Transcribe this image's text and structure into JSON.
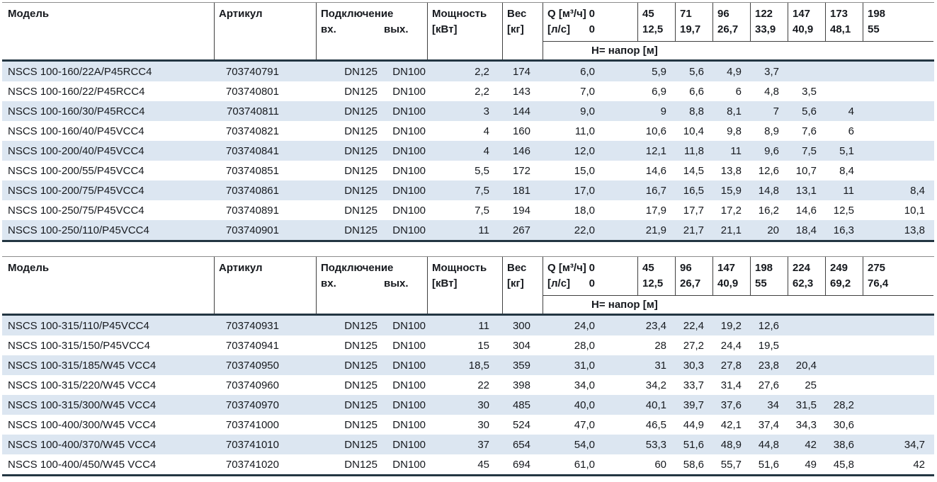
{
  "colors": {
    "stripe": "#dce6f1",
    "heavy_rule": "#233642",
    "light_rule": "#8c8c8c",
    "mid_rule": "#404040",
    "text": "#16191e"
  },
  "tables": [
    {
      "headers": {
        "model": "Модель",
        "artikul": "Артикул",
        "connection": "Подключение",
        "conn_in": "вх.",
        "conn_out": "вых.",
        "power_line1": "Мощность",
        "power_line2": "[кВт]",
        "weight_line1": "Вес",
        "weight_line2": "[кг]",
        "q_row1_label": "Q [м³/ч]",
        "q_row1_value": "0",
        "q_row2_label": "[л/с]",
        "q_row2_value": "0",
        "head_band": "Н= напор [м]",
        "flow_cols": [
          {
            "m3h": "45",
            "ls": "12,5"
          },
          {
            "m3h": "71",
            "ls": "19,7"
          },
          {
            "m3h": "96",
            "ls": "26,7"
          },
          {
            "m3h": "122",
            "ls": "33,9"
          },
          {
            "m3h": "147",
            "ls": "40,9"
          },
          {
            "m3h": "173",
            "ls": "48,1"
          },
          {
            "m3h": "198",
            "ls": "55"
          }
        ]
      },
      "rows": [
        {
          "model": "NSCS 100-160/22A/P45RCC4",
          "artikul": "703740791",
          "conn_in": "DN125",
          "conn_out": "DN100",
          "power": "2,2",
          "weight": "174",
          "h": [
            "6,0",
            "5,9",
            "5,6",
            "4,9",
            "3,7",
            "",
            "",
            ""
          ]
        },
        {
          "model": "NSCS 100-160/22/P45RCC4",
          "artikul": "703740801",
          "conn_in": "DN125",
          "conn_out": "DN100",
          "power": "2,2",
          "weight": "143",
          "h": [
            "7,0",
            "6,9",
            "6,6",
            "6",
            "4,8",
            "3,5",
            "",
            ""
          ]
        },
        {
          "model": "NSCS 100-160/30/P45RCC4",
          "artikul": "703740811",
          "conn_in": "DN125",
          "conn_out": "DN100",
          "power": "3",
          "weight": "144",
          "h": [
            "9,0",
            "9",
            "8,8",
            "8,1",
            "7",
            "5,6",
            "4",
            ""
          ]
        },
        {
          "model": "NSCS 100-160/40/P45VCC4",
          "artikul": "703740821",
          "conn_in": "DN125",
          "conn_out": "DN100",
          "power": "4",
          "weight": "160",
          "h": [
            "11,0",
            "10,6",
            "10,4",
            "9,8",
            "8,9",
            "7,6",
            "6",
            ""
          ]
        },
        {
          "model": "NSCS 100-200/40/P45VCC4",
          "artikul": "703740841",
          "conn_in": "DN125",
          "conn_out": "DN100",
          "power": "4",
          "weight": "146",
          "h": [
            "12,0",
            "12,1",
            "11,8",
            "11",
            "9,6",
            "7,5",
            "5,1",
            ""
          ]
        },
        {
          "model": "NSCS 100-200/55/P45VCC4",
          "artikul": "703740851",
          "conn_in": "DN125",
          "conn_out": "DN100",
          "power": "5,5",
          "weight": "172",
          "h": [
            "15,0",
            "14,6",
            "14,5",
            "13,8",
            "12,6",
            "10,7",
            "8,4",
            ""
          ]
        },
        {
          "model": "NSCS 100-200/75/P45VCC4",
          "artikul": "703740861",
          "conn_in": "DN125",
          "conn_out": "DN100",
          "power": "7,5",
          "weight": "181",
          "h": [
            "17,0",
            "16,7",
            "16,5",
            "15,9",
            "14,8",
            "13,1",
            "11",
            "8,4"
          ]
        },
        {
          "model": "NSCS 100-250/75/P45VCC4",
          "artikul": "703740891",
          "conn_in": "DN125",
          "conn_out": "DN100",
          "power": "7,5",
          "weight": "194",
          "h": [
            "18,0",
            "17,9",
            "17,7",
            "17,2",
            "16,2",
            "14,6",
            "12,5",
            "10,1"
          ]
        },
        {
          "model": "NSCS 100-250/110/P45VCC4",
          "artikul": "703740901",
          "conn_in": "DN125",
          "conn_out": "DN100",
          "power": "11",
          "weight": "267",
          "h": [
            "22,0",
            "21,9",
            "21,7",
            "21,1",
            "20",
            "18,4",
            "16,3",
            "13,8"
          ]
        }
      ]
    },
    {
      "headers": {
        "model": "Модель",
        "artikul": "Артикул",
        "connection": "Подключение",
        "conn_in": "вх.",
        "conn_out": "вых.",
        "power_line1": "Мощность",
        "power_line2": "[кВт]",
        "weight_line1": "Вес",
        "weight_line2": "[кг]",
        "q_row1_label": "Q [м³/ч]",
        "q_row1_value": "0",
        "q_row2_label": "[л/с]",
        "q_row2_value": "0",
        "head_band": "Н= напор [м]",
        "flow_cols": [
          {
            "m3h": "45",
            "ls": "12,5"
          },
          {
            "m3h": "96",
            "ls": "26,7"
          },
          {
            "m3h": "147",
            "ls": "40,9"
          },
          {
            "m3h": "198",
            "ls": "55"
          },
          {
            "m3h": "224",
            "ls": "62,3"
          },
          {
            "m3h": "249",
            "ls": "69,2"
          },
          {
            "m3h": "275",
            "ls": "76,4"
          }
        ]
      },
      "rows": [
        {
          "model": "NSCS 100-315/110/P45VCC4",
          "artikul": "703740931",
          "conn_in": "DN125",
          "conn_out": "DN100",
          "power": "11",
          "weight": "300",
          "h": [
            "24,0",
            "23,4",
            "22,4",
            "19,2",
            "12,6",
            "",
            "",
            ""
          ]
        },
        {
          "model": "NSCS 100-315/150/P45VCC4",
          "artikul": "703740941",
          "conn_in": "DN125",
          "conn_out": "DN100",
          "power": "15",
          "weight": "304",
          "h": [
            "28,0",
            "28",
            "27,2",
            "24,4",
            "19,5",
            "",
            "",
            ""
          ]
        },
        {
          "model": "NSCS 100-315/185/W45 VCC4",
          "artikul": "703740950",
          "conn_in": "DN125",
          "conn_out": "DN100",
          "power": "18,5",
          "weight": "359",
          "h": [
            "31,0",
            "31",
            "30,3",
            "27,8",
            "23,8",
            "20,4",
            "",
            ""
          ]
        },
        {
          "model": "NSCS 100-315/220/W45 VCC4",
          "artikul": "703740960",
          "conn_in": "DN125",
          "conn_out": "DN100",
          "power": "22",
          "weight": "398",
          "h": [
            "34,0",
            "34,2",
            "33,7",
            "31,4",
            "27,6",
            "25",
            "",
            ""
          ]
        },
        {
          "model": "NSCS 100-315/300/W45 VCC4",
          "artikul": "703740970",
          "conn_in": "DN125",
          "conn_out": "DN100",
          "power": "30",
          "weight": "485",
          "h": [
            "40,0",
            "40,1",
            "39,7",
            "37,6",
            "34",
            "31,5",
            "28,2",
            ""
          ]
        },
        {
          "model": "NSCS 100-400/300/W45 VCC4",
          "artikul": "703741000",
          "conn_in": "DN125",
          "conn_out": "DN100",
          "power": "30",
          "weight": "524",
          "h": [
            "47,0",
            "46,5",
            "44,9",
            "42,1",
            "37,4",
            "34,3",
            "30,6",
            ""
          ]
        },
        {
          "model": "NSCS 100-400/370/W45 VCC4",
          "artikul": "703741010",
          "conn_in": "DN125",
          "conn_out": "DN100",
          "power": "37",
          "weight": "654",
          "h": [
            "54,0",
            "53,3",
            "51,6",
            "48,9",
            "44,8",
            "42",
            "38,6",
            "34,7"
          ]
        },
        {
          "model": "NSCS 100-400/450/W45 VCC4",
          "artikul": "703741020",
          "conn_in": "DN125",
          "conn_out": "DN100",
          "power": "45",
          "weight": "694",
          "h": [
            "61,0",
            "60",
            "58,6",
            "55,7",
            "51,6",
            "49",
            "45,8",
            "42"
          ]
        }
      ]
    }
  ]
}
